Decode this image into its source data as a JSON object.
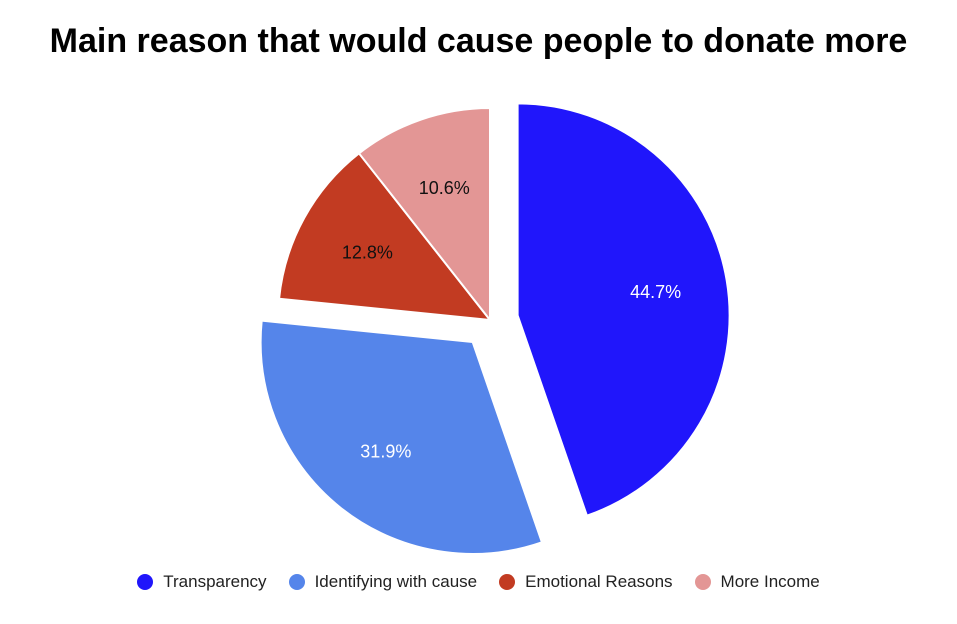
{
  "chart_data": {
    "type": "pie",
    "title": "Main reason that would cause people to donate more",
    "slices": [
      {
        "label": "Transparency",
        "value": 44.7,
        "display": "44.7%",
        "color": "#2016fb",
        "exploded": true,
        "label_color": "#ffffff"
      },
      {
        "label": "Identifying with cause",
        "value": 31.9,
        "display": "31.9%",
        "color": "#5585ea",
        "exploded": true,
        "label_color": "#ffffff"
      },
      {
        "label": "Emotional Reasons",
        "value": 12.8,
        "display": "12.8%",
        "color": "#c23b22",
        "exploded": false,
        "label_color": "#111111"
      },
      {
        "label": "More Income",
        "value": 10.6,
        "display": "10.6%",
        "color": "#e39695",
        "exploded": false,
        "label_color": "#111111"
      }
    ],
    "legend": {
      "position": "bottom"
    }
  }
}
